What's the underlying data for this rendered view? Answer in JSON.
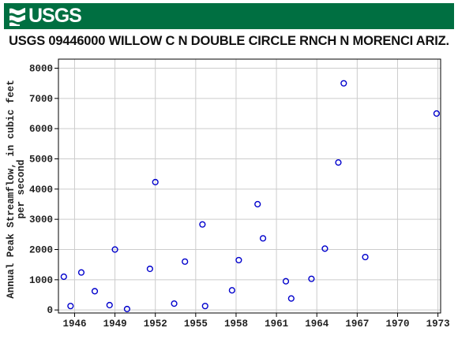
{
  "header": {
    "logo_text": "USGS",
    "brand_color": "#006f41"
  },
  "chart_data": {
    "type": "scatter",
    "title": "USGS 09446000 WILLOW C N DOUBLE CIRCLE RNCH N MORENCI ARIZ.",
    "ylabel_lines": [
      "Annual Peak Streamflow, in cubic feet",
      "per second"
    ],
    "xlabel": "",
    "xlim": [
      1944.8,
      1973.2
    ],
    "ylim": [
      -100,
      8300
    ],
    "x_ticks": [
      "1946",
      "1949",
      "1952",
      "1955",
      "1958",
      "1961",
      "1964",
      "1967",
      "1970",
      "1973"
    ],
    "y_ticks": [
      "0",
      "1000",
      "2000",
      "3000",
      "4000",
      "5000",
      "6000",
      "7000",
      "8000"
    ],
    "grid": true,
    "marker_color": "#0000cc",
    "points": [
      {
        "x": 1945.2,
        "y": 1100
      },
      {
        "x": 1945.7,
        "y": 130
      },
      {
        "x": 1946.5,
        "y": 1240
      },
      {
        "x": 1947.5,
        "y": 620
      },
      {
        "x": 1948.6,
        "y": 160
      },
      {
        "x": 1949.0,
        "y": 2000
      },
      {
        "x": 1949.9,
        "y": 30
      },
      {
        "x": 1951.6,
        "y": 1360
      },
      {
        "x": 1952.0,
        "y": 4230
      },
      {
        "x": 1953.4,
        "y": 210
      },
      {
        "x": 1954.2,
        "y": 1600
      },
      {
        "x": 1955.5,
        "y": 2830
      },
      {
        "x": 1955.7,
        "y": 130
      },
      {
        "x": 1957.7,
        "y": 650
      },
      {
        "x": 1958.2,
        "y": 1650
      },
      {
        "x": 1959.6,
        "y": 3500
      },
      {
        "x": 1960.0,
        "y": 2370
      },
      {
        "x": 1961.7,
        "y": 950
      },
      {
        "x": 1962.1,
        "y": 380
      },
      {
        "x": 1963.6,
        "y": 1030
      },
      {
        "x": 1964.6,
        "y": 2030
      },
      {
        "x": 1965.6,
        "y": 4880
      },
      {
        "x": 1966.0,
        "y": 7500
      },
      {
        "x": 1967.6,
        "y": 1750
      },
      {
        "x": 1972.9,
        "y": 6500
      }
    ]
  }
}
